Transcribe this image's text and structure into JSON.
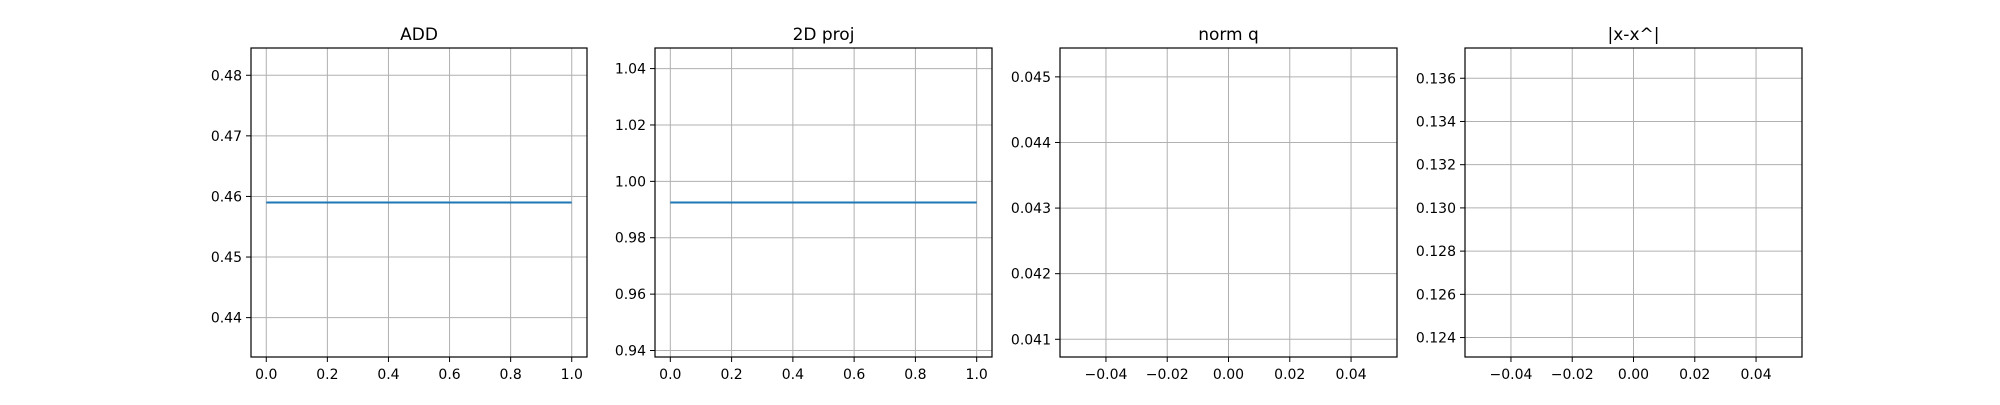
{
  "figure": {
    "background": "#ffffff"
  },
  "style": {
    "line_color": "#1f77b4",
    "grid_color": "#b0b0b0",
    "axis_color": "#000000"
  },
  "chart_data": [
    {
      "type": "line",
      "title": "ADD",
      "xlabel": "",
      "ylabel": "",
      "xlim": [
        -0.05,
        1.05
      ],
      "ylim": [
        0.4335,
        0.4845
      ],
      "xticks": [
        0.0,
        0.2,
        0.4,
        0.6,
        0.8,
        1.0
      ],
      "xtick_labels": [
        "0.0",
        "0.2",
        "0.4",
        "0.6",
        "0.8",
        "1.0"
      ],
      "yticks": [
        0.44,
        0.45,
        0.46,
        0.47,
        0.48
      ],
      "ytick_labels": [
        "0.44",
        "0.45",
        "0.46",
        "0.47",
        "0.48"
      ],
      "grid": true,
      "series": [
        {
          "x": [
            0.0,
            1.0
          ],
          "y": [
            0.459,
            0.459
          ]
        }
      ]
    },
    {
      "type": "line",
      "title": "2D proj",
      "xlabel": "",
      "ylabel": "",
      "xlim": [
        -0.05,
        1.05
      ],
      "ylim": [
        0.9377,
        1.0473
      ],
      "xticks": [
        0.0,
        0.2,
        0.4,
        0.6,
        0.8,
        1.0
      ],
      "xtick_labels": [
        "0.0",
        "0.2",
        "0.4",
        "0.6",
        "0.8",
        "1.0"
      ],
      "yticks": [
        0.94,
        0.96,
        0.98,
        1.0,
        1.02,
        1.04
      ],
      "ytick_labels": [
        "0.94",
        "0.96",
        "0.98",
        "1.00",
        "1.02",
        "1.04"
      ],
      "grid": true,
      "series": [
        {
          "x": [
            0.0,
            1.0
          ],
          "y": [
            0.9925,
            0.9925
          ]
        }
      ]
    },
    {
      "type": "line",
      "title": "norm q",
      "xlabel": "",
      "ylabel": "",
      "xlim": [
        -0.055,
        0.055
      ],
      "ylim": [
        0.04073,
        0.04544
      ],
      "xticks": [
        -0.04,
        -0.02,
        0.0,
        0.02,
        0.04
      ],
      "xtick_labels": [
        "−0.04",
        "−0.02",
        "0.00",
        "0.02",
        "0.04"
      ],
      "yticks": [
        0.041,
        0.042,
        0.043,
        0.044,
        0.045
      ],
      "ytick_labels": [
        "0.041",
        "0.042",
        "0.043",
        "0.044",
        "0.045"
      ],
      "grid": true,
      "series": []
    },
    {
      "type": "line",
      "title": "|x-x^|",
      "xlabel": "",
      "ylabel": "",
      "xlim": [
        -0.055,
        0.055
      ],
      "ylim": [
        0.1231,
        0.1374
      ],
      "xticks": [
        -0.04,
        -0.02,
        0.0,
        0.02,
        0.04
      ],
      "xtick_labels": [
        "−0.04",
        "−0.02",
        "0.00",
        "0.02",
        "0.04"
      ],
      "yticks": [
        0.124,
        0.126,
        0.128,
        0.13,
        0.132,
        0.134,
        0.136
      ],
      "ytick_labels": [
        "0.124",
        "0.126",
        "0.128",
        "0.130",
        "0.132",
        "0.134",
        "0.136"
      ],
      "grid": true,
      "series": []
    }
  ]
}
